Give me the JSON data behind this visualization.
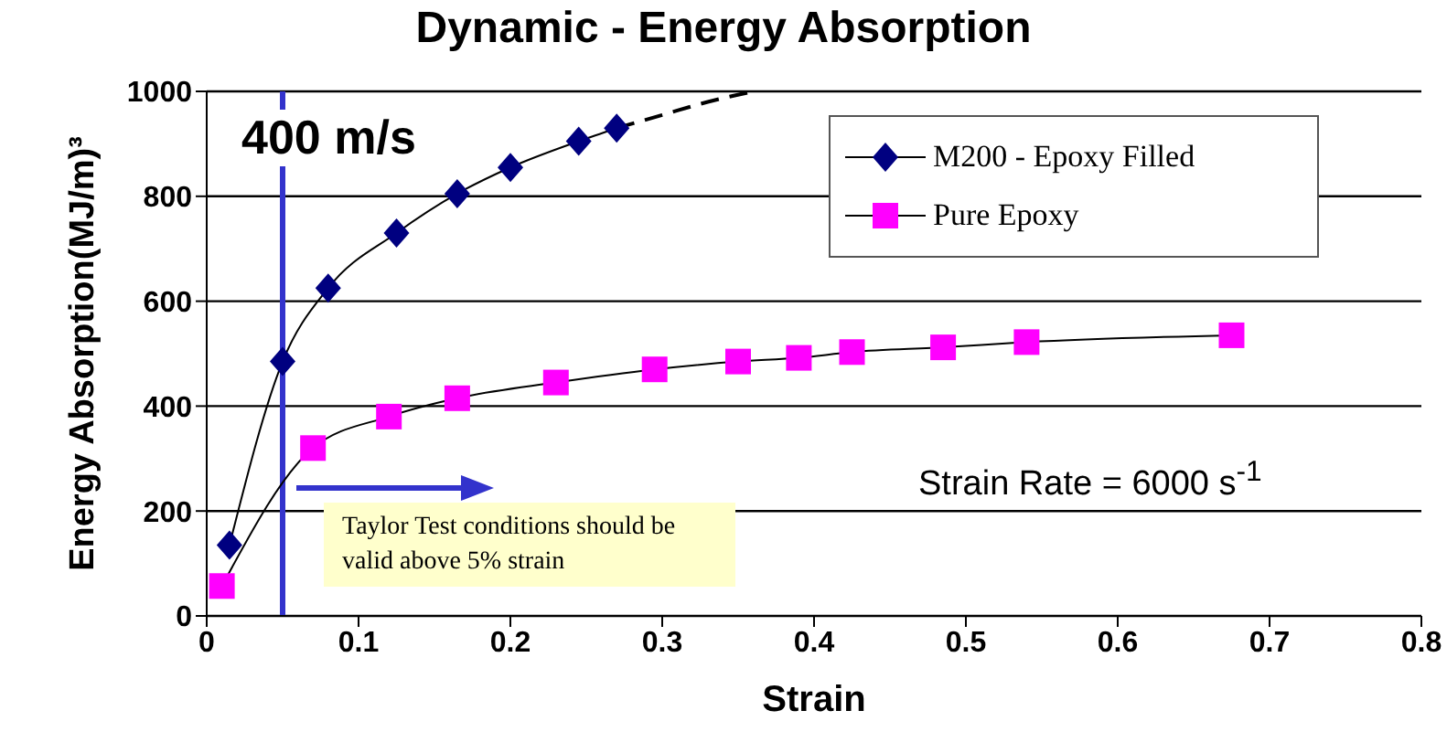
{
  "chart_data": {
    "type": "line",
    "title": "Dynamic - Energy Absorption",
    "xlabel": "Strain",
    "ylabel": "Energy Absorption(MJ/m)³",
    "xlim": [
      0,
      0.8
    ],
    "xticks": [
      0,
      0.1,
      0.2,
      0.3,
      0.4,
      0.5,
      0.6,
      0.7,
      0.8
    ],
    "ylim": [
      0,
      1000
    ],
    "yticks": [
      0,
      200,
      400,
      600,
      800,
      1000
    ],
    "grid": "y",
    "legend": "top right",
    "series": [
      {
        "name": "M200 - Epoxy Filled",
        "color": "#000080",
        "marker": "diamond",
        "x": [
          0.015,
          0.05,
          0.08,
          0.125,
          0.165,
          0.2,
          0.245,
          0.27
        ],
        "values": [
          135,
          485,
          625,
          730,
          805,
          855,
          905,
          930
        ]
      },
      {
        "name": "Pure Epoxy",
        "color": "#ff00ff",
        "marker": "square",
        "x": [
          0.01,
          0.07,
          0.12,
          0.165,
          0.23,
          0.295,
          0.35,
          0.39,
          0.425,
          0.485,
          0.54,
          0.675
        ],
        "values": [
          57,
          320,
          380,
          415,
          445,
          470,
          485,
          492,
          503,
          512,
          522,
          535
        ]
      },
      {
        "color": "#000000",
        "marker": "none",
        "line_style": "dashed",
        "x": [
          0.27,
          0.3,
          0.33,
          0.36
        ],
        "values": [
          930,
          955,
          980,
          1000
        ]
      }
    ],
    "ref_lines": [
      {
        "axis": "x",
        "value": 0.05,
        "color": "#3333cc"
      }
    ],
    "annotations": [
      "400 m/s",
      "Taylor Test conditions should be valid above 5% strain",
      "Strain Rate = 6000 s$^{-1}$"
    ]
  }
}
